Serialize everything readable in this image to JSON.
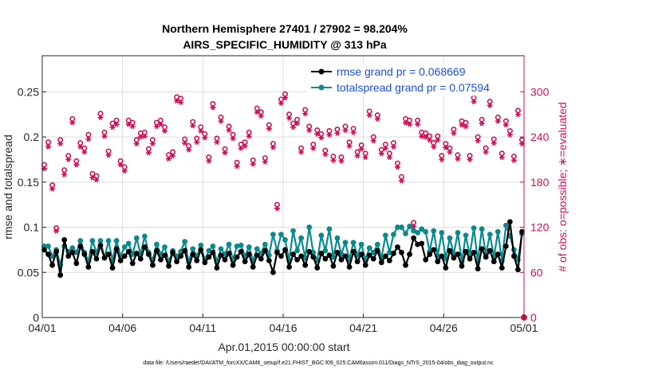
{
  "chart_data": {
    "type": "line",
    "title": "Northern Hemisphere 27401 / 27902 = 98.204%",
    "subtitle": "AIRS_SPECIFIC_HUMIDITY @ 313 hPa",
    "xlabel": "Apr.01,2015 00:00:00 start",
    "ylabel": "rmse and totalspread",
    "ylabel_right": "# of obs: o=possible; ∗=evaluated",
    "footnote": "data file: /Users/raeder/DAI/ATM_forcXX/CAM6_setup/f.e21.FHIST_BGC.f09_025.CAM6assim.011/Diags_NTrS_2015-04/obs_diag_output.nc",
    "xlim": [
      0,
      30
    ],
    "ylim": [
      0,
      0.29
    ],
    "ylim_right": [
      0,
      348
    ],
    "grid": true,
    "legend_position": "top-right",
    "x_ticks": [
      {
        "value": 0,
        "label": "04/01"
      },
      {
        "value": 5,
        "label": "04/06"
      },
      {
        "value": 10,
        "label": "04/11"
      },
      {
        "value": 15,
        "label": "04/16"
      },
      {
        "value": 20,
        "label": "04/21"
      },
      {
        "value": 25,
        "label": "04/26"
      },
      {
        "value": 30,
        "label": "05/01"
      }
    ],
    "y_ticks": [
      {
        "value": 0,
        "label": "0"
      },
      {
        "value": 0.05,
        "label": "0.05"
      },
      {
        "value": 0.1,
        "label": "0.1"
      },
      {
        "value": 0.15,
        "label": "0.15"
      },
      {
        "value": 0.2,
        "label": "0.2"
      },
      {
        "value": 0.25,
        "label": "0.25"
      }
    ],
    "y_ticks_right": [
      {
        "value": 0,
        "label": "0"
      },
      {
        "value": 60,
        "label": "60"
      },
      {
        "value": 120,
        "label": "120"
      },
      {
        "value": 180,
        "label": "180"
      },
      {
        "value": 240,
        "label": "240"
      },
      {
        "value": 300,
        "label": "300"
      }
    ],
    "x": [
      0.125,
      0.375,
      0.625,
      0.875,
      1.125,
      1.375,
      1.625,
      1.875,
      2.125,
      2.375,
      2.625,
      2.875,
      3.125,
      3.375,
      3.625,
      3.875,
      4.125,
      4.375,
      4.625,
      4.875,
      5.125,
      5.375,
      5.625,
      5.875,
      6.125,
      6.375,
      6.625,
      6.875,
      7.125,
      7.375,
      7.625,
      7.875,
      8.125,
      8.375,
      8.625,
      8.875,
      9.125,
      9.375,
      9.625,
      9.875,
      10.125,
      10.375,
      10.625,
      10.875,
      11.125,
      11.375,
      11.625,
      11.875,
      12.125,
      12.375,
      12.625,
      12.875,
      13.125,
      13.375,
      13.625,
      13.875,
      14.125,
      14.375,
      14.625,
      14.875,
      15.125,
      15.375,
      15.625,
      15.875,
      16.125,
      16.375,
      16.625,
      16.875,
      17.125,
      17.375,
      17.625,
      17.875,
      18.125,
      18.375,
      18.625,
      18.875,
      19.125,
      19.375,
      19.625,
      19.875,
      20.125,
      20.375,
      20.625,
      20.875,
      21.125,
      21.375,
      21.625,
      21.875,
      22.125,
      22.375,
      22.625,
      22.875,
      23.125,
      23.375,
      23.625,
      23.875,
      24.125,
      24.375,
      24.625,
      24.875,
      25.125,
      25.375,
      25.625,
      25.875,
      26.125,
      26.375,
      26.625,
      26.875,
      27.125,
      27.375,
      27.625,
      27.875,
      28.125,
      28.375,
      28.625,
      28.875,
      29.125,
      29.375,
      29.625,
      29.875
    ],
    "series": [
      {
        "name": "rmse grand pr = 0.068669",
        "axis": "left",
        "color": "#000000",
        "marker": "filled-circle",
        "values": [
          0.075,
          0.07,
          0.058,
          0.073,
          0.047,
          0.086,
          0.068,
          0.072,
          0.06,
          0.079,
          0.07,
          0.056,
          0.073,
          0.065,
          0.08,
          0.066,
          0.07,
          0.055,
          0.076,
          0.063,
          0.068,
          0.073,
          0.06,
          0.071,
          0.065,
          0.078,
          0.07,
          0.058,
          0.074,
          0.064,
          0.069,
          0.057,
          0.072,
          0.062,
          0.068,
          0.074,
          0.056,
          0.07,
          0.063,
          0.075,
          0.061,
          0.067,
          0.072,
          0.055,
          0.069,
          0.064,
          0.071,
          0.058,
          0.067,
          0.073,
          0.062,
          0.07,
          0.056,
          0.069,
          0.065,
          0.074,
          0.063,
          0.05,
          0.072,
          0.068,
          0.075,
          0.056,
          0.07,
          0.064,
          0.068,
          0.058,
          0.073,
          0.067,
          0.055,
          0.071,
          0.065,
          0.069,
          0.057,
          0.072,
          0.064,
          0.068,
          0.056,
          0.073,
          0.062,
          0.07,
          0.058,
          0.069,
          0.065,
          0.074,
          0.061,
          0.068,
          0.063,
          0.071,
          0.078,
          0.072,
          0.058,
          0.07,
          0.088,
          0.081,
          0.082,
          0.064,
          0.07,
          0.075,
          0.062,
          0.068,
          0.055,
          0.074,
          0.066,
          0.07,
          0.057,
          0.073,
          0.065,
          0.072,
          0.054,
          0.076,
          0.067,
          0.074,
          0.062,
          0.07,
          0.055,
          0.079,
          0.106,
          0.068,
          0.053,
          0.095
        ]
      },
      {
        "name": "totalspread grand pr = 0.07594",
        "axis": "left",
        "color": "#0b8a8c",
        "marker": "filled-circle",
        "values": [
          0.079,
          0.079,
          0.068,
          0.075,
          0.058,
          0.079,
          0.073,
          0.077,
          0.072,
          0.085,
          0.072,
          0.063,
          0.085,
          0.072,
          0.085,
          0.066,
          0.085,
          0.063,
          0.085,
          0.068,
          0.078,
          0.082,
          0.07,
          0.088,
          0.07,
          0.09,
          0.072,
          0.064,
          0.081,
          0.07,
          0.078,
          0.062,
          0.074,
          0.068,
          0.073,
          0.084,
          0.062,
          0.076,
          0.068,
          0.08,
          0.064,
          0.074,
          0.079,
          0.062,
          0.076,
          0.07,
          0.081,
          0.064,
          0.079,
          0.08,
          0.068,
          0.078,
          0.063,
          0.076,
          0.071,
          0.081,
          0.069,
          0.092,
          0.074,
          0.092,
          0.086,
          0.063,
          0.096,
          0.074,
          0.088,
          0.066,
          0.1,
          0.072,
          0.063,
          0.091,
          0.074,
          0.098,
          0.067,
          0.088,
          0.07,
          0.083,
          0.064,
          0.083,
          0.069,
          0.081,
          0.064,
          0.077,
          0.072,
          0.081,
          0.066,
          0.091,
          0.072,
          0.092,
          0.1,
          0.1,
          0.093,
          0.101,
          0.096,
          0.094,
          0.098,
          0.095,
          0.073,
          0.096,
          0.068,
          0.094,
          0.065,
          0.088,
          0.07,
          0.094,
          0.062,
          0.091,
          0.069,
          0.099,
          0.062,
          0.098,
          0.07,
          0.092,
          0.067,
          0.095,
          0.063,
          0.102,
          0.09,
          0.075,
          0.064,
          0.093
        ]
      },
      {
        "name": "possible",
        "axis": "right",
        "color": "#cc1155",
        "marker": "open-circle",
        "values": [
          203,
          233,
          176,
          119,
          236,
          196,
          215,
          264,
          208,
          232,
          225,
          243,
          191,
          188,
          271,
          246,
          221,
          258,
          262,
          208,
          200,
          262,
          259,
          236,
          245,
          246,
          224,
          236,
          259,
          262,
          253,
          216,
          220,
          293,
          291,
          237,
          228,
          260,
          238,
          253,
          244,
          213,
          284,
          238,
          266,
          224,
          254,
          243,
          206,
          230,
          233,
          246,
          209,
          278,
          273,
          212,
          256,
          231,
          150,
          290,
          297,
          270,
          258,
          263,
          225,
          276,
          254,
          230,
          249,
          244,
          222,
          248,
          214,
          250,
          213,
          254,
          233,
          251,
          220,
          229,
          218,
          274,
          240,
          269,
          223,
          230,
          218,
          232,
          205,
          187,
          264,
          262,
          126,
          262,
          246,
          245,
          241,
          232,
          241,
          215,
          231,
          225,
          250,
          216,
          261,
          259,
          215,
          292,
          240,
          263,
          225,
          287,
          237,
          266,
          218,
          261,
          248,
          214,
          275,
          236
        ]
      },
      {
        "name": "evaluated",
        "axis": "right",
        "color": "#cc1155",
        "marker": "asterisk",
        "values": [
          198,
          227,
          171,
          115,
          231,
          190,
          210,
          259,
          203,
          227,
          220,
          237,
          186,
          183,
          266,
          241,
          216,
          253,
          257,
          203,
          195,
          257,
          254,
          231,
          240,
          241,
          219,
          231,
          254,
          257,
          248,
          211,
          215,
          288,
          286,
          232,
          223,
          255,
          233,
          248,
          239,
          208,
          279,
          233,
          261,
          219,
          249,
          238,
          201,
          225,
          228,
          241,
          204,
          273,
          268,
          207,
          251,
          226,
          145,
          285,
          292,
          265,
          253,
          258,
          220,
          271,
          249,
          225,
          244,
          239,
          217,
          243,
          209,
          245,
          208,
          249,
          228,
          246,
          215,
          224,
          213,
          269,
          235,
          264,
          218,
          225,
          213,
          227,
          200,
          182,
          259,
          257,
          121,
          257,
          241,
          240,
          236,
          227,
          236,
          210,
          226,
          220,
          245,
          211,
          256,
          254,
          210,
          287,
          235,
          258,
          220,
          282,
          232,
          261,
          213,
          256,
          243,
          209,
          270,
          231
        ]
      }
    ]
  }
}
